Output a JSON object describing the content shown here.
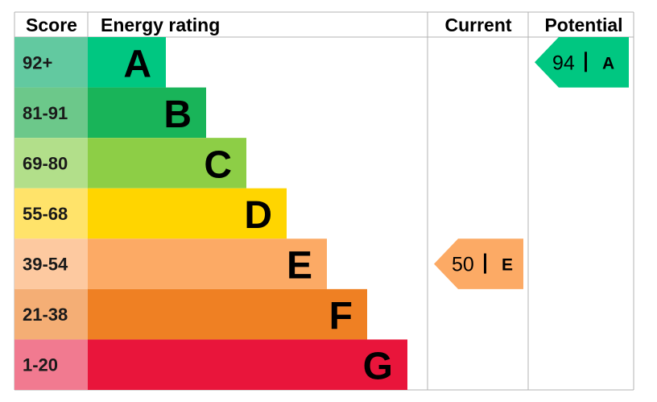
{
  "chart_data": {
    "type": "bar",
    "headers": {
      "score": "Score",
      "rating": "Energy rating",
      "current": "Current",
      "potential": "Potential"
    },
    "bands": [
      {
        "letter": "A",
        "range": "92+",
        "color": "#00c781",
        "score_color": "#62c9a0"
      },
      {
        "letter": "B",
        "range": "81-91",
        "color": "#19b459",
        "score_color": "#6cc88a"
      },
      {
        "letter": "C",
        "range": "69-80",
        "color": "#8dce46",
        "score_color": "#b2df8a"
      },
      {
        "letter": "D",
        "range": "55-68",
        "color": "#ffd500",
        "score_color": "#ffe36a"
      },
      {
        "letter": "E",
        "range": "39-54",
        "color": "#fcaa65",
        "score_color": "#fdc9a0"
      },
      {
        "letter": "F",
        "range": "21-38",
        "color": "#ef8023",
        "score_color": "#f4ae75"
      },
      {
        "letter": "G",
        "range": "1-20",
        "color": "#e9153b",
        "score_color": "#f17a90"
      }
    ],
    "current": {
      "value": 50,
      "band": "E",
      "color": "#fcaa65"
    },
    "potential": {
      "value": 94,
      "band": "A",
      "color": "#00c781"
    }
  }
}
